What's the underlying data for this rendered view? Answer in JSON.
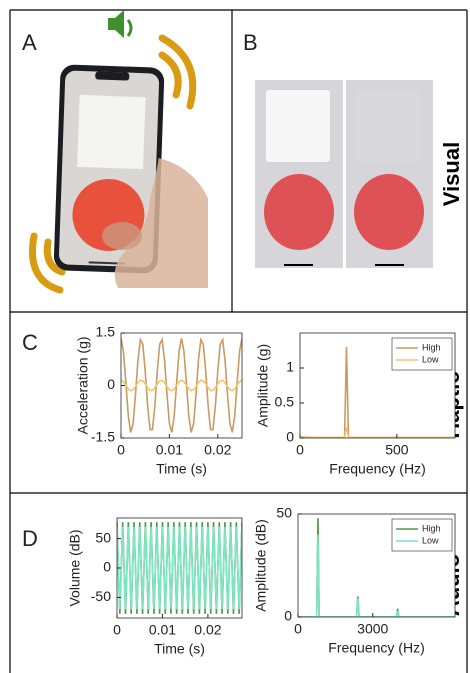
{
  "panel_labels": [
    "A",
    "B",
    "C",
    "D"
  ],
  "row_labels": [
    "Visual",
    "Haptic",
    "Audio"
  ],
  "chart_data": [
    {
      "type": "line",
      "xlabel": "Time (s)",
      "ylabel": "Acceleration (g)",
      "x": [
        0,
        0.0005,
        0.001,
        0.0015,
        0.002,
        0.0025,
        0.003,
        0.0035,
        0.004,
        0.0045,
        0.005,
        0.0055,
        0.006,
        0.0065,
        0.007,
        0.0075,
        0.008,
        0.0085,
        0.009,
        0.0095,
        0.01,
        0.0105,
        0.011,
        0.0115,
        0.012,
        0.0125,
        0.013,
        0.0135,
        0.014,
        0.0145,
        0.015,
        0.0155,
        0.016,
        0.0165,
        0.017,
        0.0175,
        0.018,
        0.0185,
        0.019,
        0.0195,
        0.02,
        0.0205,
        0.021,
        0.0215,
        0.022,
        0.0225,
        0.023,
        0.0235,
        0.024,
        0.0245,
        0.025
      ],
      "series": [
        {
          "color": "#c99a62",
          "values": [
            1.35,
            0.98,
            0.09,
            -0.86,
            -1.34,
            -1.09,
            -0.25,
            0.72,
            1.31,
            1.18,
            0.42,
            -0.58,
            -1.26,
            -1.26,
            -0.58,
            0.42,
            1.18,
            1.31,
            0.72,
            -0.25,
            -1.09,
            -1.34,
            -0.86,
            0.09,
            0.98,
            1.35,
            0.98,
            0.09,
            -0.86,
            -1.34,
            -1.09,
            -0.25,
            0.72,
            1.31,
            1.18,
            0.42,
            -0.58,
            -1.26,
            -1.26,
            -0.58,
            0.42,
            1.18,
            1.31,
            0.72,
            -0.25,
            -1.09,
            -1.34,
            -0.86,
            0.09,
            0.98,
            1.35
          ]
        },
        {
          "color": "#f3c667",
          "values": [
            0.15,
            0.11,
            0.01,
            -0.1,
            -0.15,
            -0.12,
            -0.03,
            0.08,
            0.15,
            0.13,
            0.05,
            -0.06,
            -0.14,
            -0.14,
            -0.06,
            0.05,
            0.13,
            0.15,
            0.08,
            -0.03,
            -0.12,
            -0.15,
            -0.1,
            0.01,
            0.11,
            0.15,
            0.11,
            0.01,
            -0.1,
            -0.15,
            -0.12,
            -0.03,
            0.08,
            0.15,
            0.13,
            0.05,
            -0.06,
            -0.14,
            -0.14,
            -0.06,
            0.05,
            0.13,
            0.15,
            0.08,
            -0.03,
            -0.12,
            -0.15,
            -0.1,
            0.01,
            0.11,
            0.15
          ]
        }
      ],
      "xlim": [
        0,
        0.025
      ],
      "xticks": [
        0,
        0.01,
        0.02
      ],
      "ylim": [
        -1.5,
        1.5
      ],
      "yticks": [
        -1.5,
        0,
        1.5
      ]
    },
    {
      "type": "line",
      "xlabel": "Frequency (Hz)",
      "ylabel": "Amplitude (g)",
      "legend": "upper right",
      "x": [
        0,
        50,
        230,
        240,
        250,
        800
      ],
      "series": [
        {
          "name": "High",
          "color": "#c99a62",
          "values": [
            0,
            0,
            0,
            1.3,
            0,
            0
          ]
        },
        {
          "name": "Low",
          "color": "#f3c667",
          "values": [
            0.02,
            0.01,
            0.01,
            0.15,
            0.01,
            0.01
          ]
        }
      ],
      "xlim": [
        0,
        800
      ],
      "xticks": [
        0,
        500
      ],
      "ylim": [
        0,
        1.5
      ],
      "yticks": [
        0,
        0.5,
        1
      ]
    },
    {
      "type": "line",
      "xlabel": "Time (s)",
      "ylabel": "Volume (dB)",
      "x": [
        0,
        0.000625,
        0.00125,
        0.001875,
        0.0025,
        0.003125,
        0.00375,
        0.004375,
        0.005,
        0.005625,
        0.00625,
        0.006875,
        0.0075,
        0.008125,
        0.00875,
        0.009375,
        0.01,
        0.010625,
        0.01125,
        0.011875,
        0.0125,
        0.013125,
        0.01375,
        0.014375,
        0.015,
        0.015625,
        0.01625,
        0.016875,
        0.0175,
        0.018125,
        0.01875,
        0.019375,
        0.02,
        0.020625,
        0.02125,
        0.021875,
        0.0225,
        0.023125,
        0.02375,
        0.024375,
        0.025,
        0.025625,
        0.02625,
        0.026875,
        0.0275
      ],
      "series": [
        {
          "color": "#4f9a45",
          "values": [
            78,
            -78,
            78,
            -78,
            78,
            -78,
            78,
            -78,
            78,
            -78,
            78,
            -78,
            78,
            -78,
            78,
            -78,
            78,
            -78,
            78,
            -78,
            78,
            -78,
            78,
            -78,
            78,
            -78,
            78,
            -78,
            78,
            -78,
            78,
            -78,
            78,
            -78,
            78,
            -78,
            78,
            -78,
            78,
            -78,
            78,
            -78,
            78,
            -78,
            78
          ]
        },
        {
          "color": "#7de6c4",
          "values": [
            70,
            -70,
            70,
            -70,
            70,
            -70,
            70,
            -70,
            70,
            -70,
            70,
            -70,
            70,
            -70,
            70,
            -70,
            70,
            -70,
            70,
            -70,
            70,
            -70,
            70,
            -70,
            70,
            -70,
            70,
            -70,
            70,
            -70,
            70,
            -70,
            70,
            -70,
            70,
            -70,
            70,
            -70,
            70,
            -70,
            70,
            -70,
            70,
            -70,
            70
          ]
        }
      ],
      "xlim": [
        0,
        0.0275
      ],
      "xticks": [
        0,
        0.01,
        0.02
      ],
      "ylim": [
        -85,
        85
      ],
      "yticks": [
        -50,
        0,
        50
      ]
    },
    {
      "type": "line",
      "xlabel": "Frequency (Hz)",
      "ylabel": "Amplitude (dB)",
      "legend": "upper right",
      "x": [
        0,
        750,
        800,
        850,
        2350,
        2400,
        2450,
        3950,
        4000,
        4050,
        6300
      ],
      "series": [
        {
          "name": "High",
          "color": "#4f9a45",
          "values": [
            0,
            0,
            48,
            0,
            0,
            10,
            0,
            0,
            4,
            0,
            0
          ]
        },
        {
          "name": "Low",
          "color": "#7de6c4",
          "values": [
            0,
            0,
            40,
            0,
            0,
            9,
            0,
            0,
            3,
            0,
            0
          ]
        }
      ],
      "xlim": [
        0,
        6300
      ],
      "xticks": [
        0,
        3000
      ],
      "ylim": [
        0,
        50
      ],
      "yticks": [
        0,
        50
      ]
    }
  ]
}
